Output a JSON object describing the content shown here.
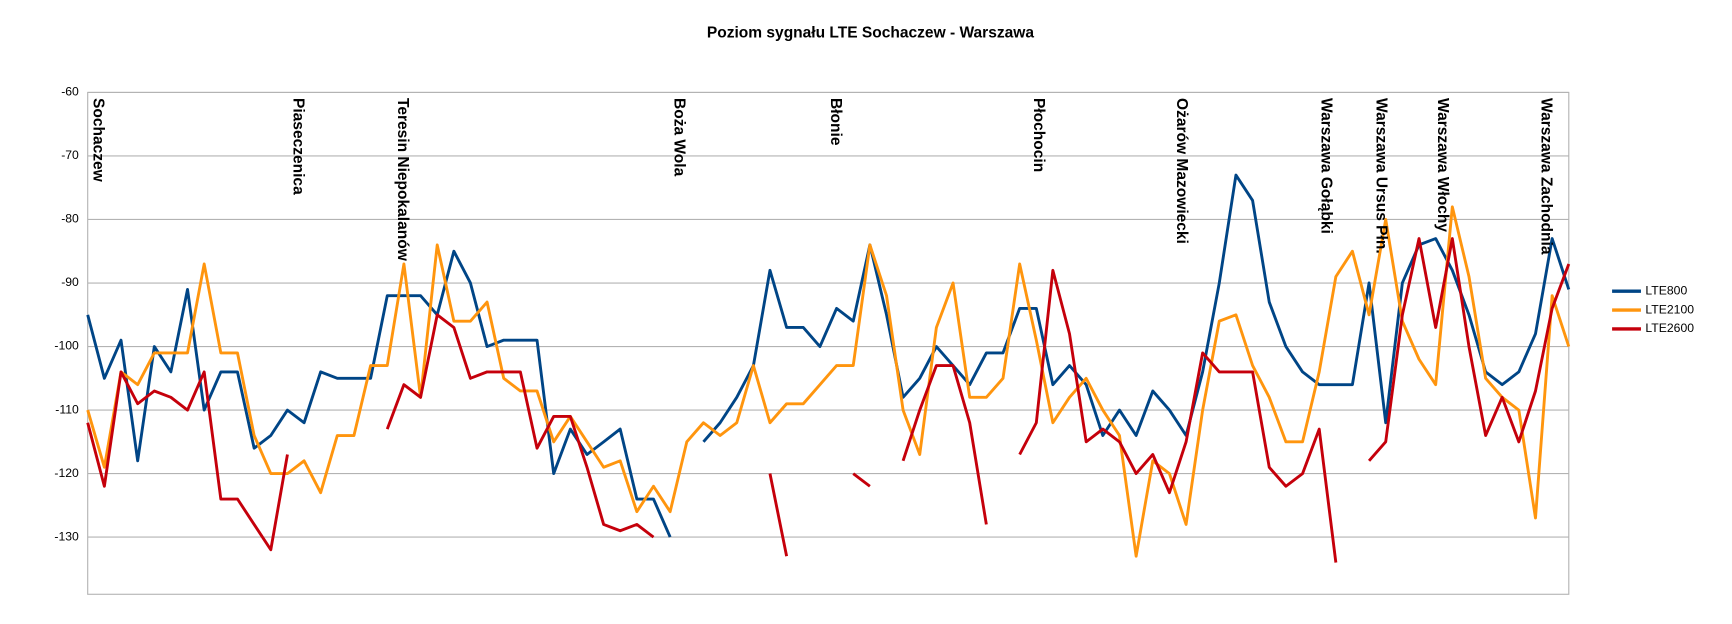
{
  "chart_data": {
    "type": "line",
    "title": "Poziom sygnału LTE Sochaczew - Warszawa",
    "xlim": [
      0,
      89
    ],
    "ylim": [
      -139,
      -60
    ],
    "yticks": [
      -60,
      -70,
      -80,
      -90,
      -100,
      -110,
      -120,
      -130
    ],
    "grid": true,
    "legend": "right",
    "annotations": [
      {
        "text": "Sochaczew",
        "x": 0.6
      },
      {
        "text": "Piaseczenica",
        "x": 12.6
      },
      {
        "text": "Teresin Niepokalanów",
        "x": 18.9
      },
      {
        "text": "Boża Wola",
        "x": 35.5
      },
      {
        "text": "Błonie",
        "x": 44.9
      },
      {
        "text": "Płochocin",
        "x": 57.1
      },
      {
        "text": "Ożarów Mazowiecki",
        "x": 65.7
      },
      {
        "text": "Warszawa Gołąbki",
        "x": 74.4
      },
      {
        "text": "Warszawa Ursus Płn.",
        "x": 77.7
      },
      {
        "text": "Warszawa Włochy",
        "x": 81.4
      },
      {
        "text": "Warszawa Zachodnia",
        "x": 87.6
      }
    ],
    "series": [
      {
        "name": "LTE800",
        "color": "#004586",
        "values": [
          -95,
          -105,
          -99,
          -118,
          -100,
          -104,
          -91,
          -110,
          -104,
          -104,
          -116,
          -114,
          -110,
          -112,
          -104,
          -105,
          -105,
          -105,
          -92,
          -92,
          -92,
          -95,
          -85,
          -90,
          -100,
          -99,
          -99,
          -99,
          -120,
          -113,
          -117,
          -115,
          -113,
          -124,
          -124,
          -130,
          null,
          -115,
          -112,
          -108,
          -103,
          -88,
          -97,
          -97,
          -100,
          -94,
          -96,
          -84,
          -95,
          -108,
          -105,
          -100,
          -103,
          -106,
          -101,
          -101,
          -94,
          -94,
          -106,
          -103,
          -106,
          -114,
          -110,
          -114,
          -107,
          -110,
          -114,
          -104,
          -90,
          -73,
          -77,
          -93,
          -100,
          -104,
          -106,
          -106,
          -106,
          -90,
          -112,
          -90,
          -84,
          -83,
          -88,
          -95,
          -104,
          -106,
          -104,
          -98,
          -83,
          -91
        ]
      },
      {
        "name": "LTE2100",
        "color": "#ff950e",
        "values": [
          -110,
          -119,
          -104,
          -106,
          -101,
          -101,
          -101,
          -87,
          -101,
          -101,
          -114,
          -120,
          -120,
          -118,
          -123,
          -114,
          -114,
          -103,
          -103,
          -87,
          -108,
          -84,
          -96,
          -96,
          -93,
          -105,
          -107,
          -107,
          -115,
          -111,
          -115,
          -119,
          -118,
          -126,
          -122,
          -126,
          -115,
          -112,
          -114,
          -112,
          -103,
          -112,
          -109,
          -109,
          -106,
          -103,
          -103,
          -84,
          -92,
          -110,
          -117,
          -97,
          -90,
          -108,
          -108,
          -105,
          -87,
          -99,
          -112,
          -108,
          -105,
          -110,
          -114,
          -133,
          -118,
          -120,
          -128,
          -110,
          -96,
          -95,
          -103,
          -108,
          -115,
          -115,
          -104,
          -89,
          -85,
          -95,
          -80,
          -96,
          -102,
          -106,
          -78,
          -89,
          -105,
          -108,
          -110,
          -127,
          -92,
          -100
        ]
      },
      {
        "name": "LTE2600",
        "color": "#c5000b",
        "values": [
          -112,
          -122,
          -104,
          -109,
          -107,
          -108,
          -110,
          -104,
          -124,
          -124,
          -128,
          -132,
          -117,
          null,
          null,
          null,
          null,
          null,
          -113,
          -106,
          -108,
          -95,
          -97,
          -105,
          -104,
          -104,
          -104,
          -116,
          -111,
          -111,
          -119,
          -128,
          -129,
          -128,
          -130,
          null,
          null,
          null,
          null,
          null,
          null,
          -120,
          -133,
          null,
          null,
          null,
          -120,
          -122,
          null,
          -118,
          -110,
          -103,
          -103,
          -112,
          -128,
          null,
          -117,
          -112,
          -88,
          -98,
          -115,
          -113,
          -115,
          -120,
          -117,
          -123,
          -115,
          -101,
          -104,
          -104,
          -104,
          -119,
          -122,
          -120,
          -113,
          -134,
          null,
          -118,
          -115,
          -95,
          -83,
          -97,
          -83,
          -100,
          -114,
          -108,
          -115,
          -107,
          -94,
          -87
        ]
      }
    ]
  }
}
